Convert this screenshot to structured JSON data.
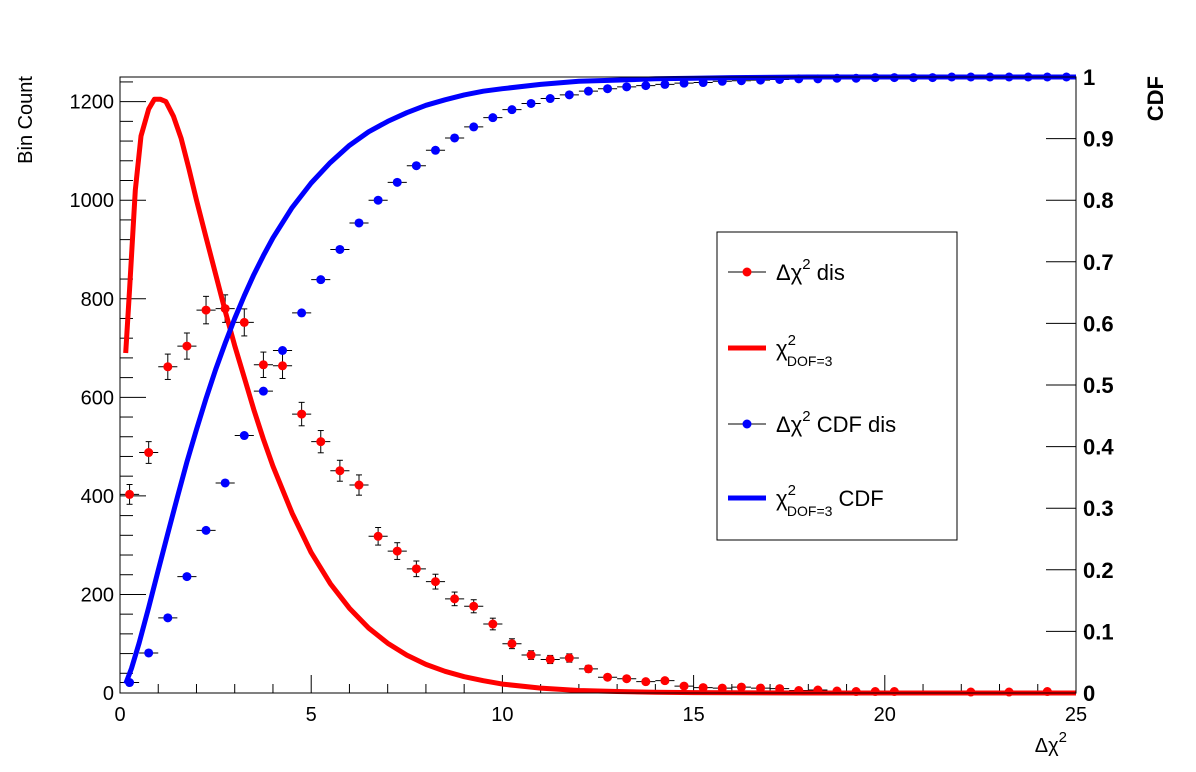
{
  "chart_data": {
    "type": "scatter",
    "xlabel": "Δχ",
    "xlabel_sup": "2",
    "ylabel": "Bin Count",
    "ylabel_right": "CDF",
    "xlim": [
      0,
      25
    ],
    "ylim": [
      0,
      1250
    ],
    "ylim_right": [
      0,
      1
    ],
    "x_ticks": [
      "0",
      "5",
      "10",
      "15",
      "20",
      "25"
    ],
    "y_ticks": [
      "0",
      "200",
      "400",
      "600",
      "800",
      "1000",
      "1200"
    ],
    "y_right_ticks": [
      "0",
      "0.1",
      "0.2",
      "0.3",
      "0.4",
      "0.5",
      "0.6",
      "0.7",
      "0.8",
      "0.9",
      "1"
    ],
    "grid": false,
    "legend_position": "right",
    "legend": [
      {
        "main": "Δχ",
        "sup": "2",
        "sub": "",
        "suffix": " dis",
        "style": "marker",
        "color": "#ff0000"
      },
      {
        "main": "χ",
        "sup": "2",
        "sub": "DOF=3",
        "suffix": "",
        "style": "line",
        "color": "#ff0000"
      },
      {
        "main": "Δχ",
        "sup": "2",
        "sub": "",
        "suffix": " CDF dis",
        "style": "marker",
        "color": "#0000ff"
      },
      {
        "main": "χ",
        "sup": "2",
        "sub": "DOF=3",
        "suffix": " CDF",
        "style": "line",
        "color": "#0000ff"
      }
    ],
    "bin_width": 0.5,
    "series": [
      {
        "name": "Δχ² dis",
        "kind": "points",
        "axis": "left",
        "color": "#ff0000",
        "x": [
          0.25,
          0.75,
          1.25,
          1.75,
          2.25,
          2.75,
          3.25,
          3.75,
          4.25,
          4.75,
          5.25,
          5.75,
          6.25,
          6.75,
          7.25,
          7.75,
          8.25,
          8.75,
          9.25,
          9.75,
          10.25,
          10.75,
          11.25,
          11.75,
          12.25,
          12.75,
          13.25,
          13.75,
          14.25,
          14.75,
          15.25,
          15.75,
          16.25,
          16.75,
          17.25,
          17.75,
          18.25,
          18.75,
          19.25,
          19.75,
          20.25,
          22.25,
          23.25,
          24.25
        ],
        "y": [
          403,
          488,
          662,
          704,
          777,
          780,
          752,
          666,
          664,
          566,
          510,
          451,
          422,
          318,
          288,
          252,
          226,
          191,
          176,
          140,
          100,
          77,
          68,
          71,
          49,
          32,
          29,
          23,
          25,
          14,
          11,
          10,
          12,
          10,
          9,
          5,
          6,
          4,
          3,
          3,
          3,
          2,
          2,
          3
        ]
      },
      {
        "name": "Δχ² CDF dis",
        "kind": "points",
        "axis": "right",
        "color": "#0000ff",
        "x": [
          0.25,
          0.75,
          1.25,
          1.75,
          2.25,
          2.75,
          3.25,
          3.75,
          4.25,
          4.75,
          5.25,
          5.75,
          6.25,
          6.75,
          7.25,
          7.75,
          8.25,
          8.75,
          9.25,
          9.75,
          10.25,
          10.75,
          11.25,
          11.75,
          12.25,
          12.75,
          13.25,
          13.75,
          14.25,
          14.75,
          15.25,
          15.75,
          16.25,
          16.75,
          17.25,
          17.75,
          18.25,
          18.75,
          19.25,
          19.75,
          20.25,
          20.75,
          21.25,
          21.75,
          22.25,
          22.75,
          23.25,
          23.75,
          24.25,
          24.75
        ],
        "y": [
          0.017,
          0.065,
          0.122,
          0.189,
          0.264,
          0.341,
          0.418,
          0.49,
          0.556,
          0.617,
          0.671,
          0.72,
          0.763,
          0.8,
          0.829,
          0.856,
          0.881,
          0.901,
          0.919,
          0.934,
          0.947,
          0.957,
          0.965,
          0.971,
          0.977,
          0.981,
          0.984,
          0.986,
          0.988,
          0.99,
          0.991,
          0.993,
          0.994,
          0.995,
          0.996,
          0.997,
          0.997,
          0.998,
          0.998,
          0.999,
          0.999,
          0.999,
          0.999,
          1.0,
          1.0,
          1.0,
          1.0,
          1.0,
          1.0,
          1.0
        ]
      },
      {
        "name": "χ²_DOF=3",
        "kind": "line",
        "axis": "left",
        "color": "#ff0000",
        "x": [
          0.15,
          0.25,
          0.4,
          0.55,
          0.75,
          0.9,
          1.05,
          1.2,
          1.4,
          1.6,
          1.8,
          2.0,
          2.25,
          2.5,
          2.75,
          3.0,
          3.25,
          3.5,
          3.75,
          4.0,
          4.5,
          5.0,
          5.5,
          6.0,
          6.5,
          7.0,
          7.5,
          8.0,
          8.5,
          9.0,
          9.5,
          10.0,
          11.0,
          12.0,
          13.0,
          14.0,
          15.0,
          16.0,
          18.0,
          20.0,
          22.0,
          25.0
        ],
        "y": [
          690,
          820,
          1020,
          1130,
          1185,
          1205,
          1205,
          1200,
          1170,
          1125,
          1065,
          1000,
          925,
          850,
          775,
          705,
          640,
          575,
          515,
          460,
          365,
          285,
          222,
          172,
          132,
          101,
          77,
          58,
          44,
          33,
          25,
          18,
          10,
          5,
          3,
          1.5,
          0.8,
          0.4,
          0.1,
          0,
          0,
          0
        ]
      },
      {
        "name": "χ²_DOF=3 CDF",
        "kind": "line",
        "axis": "right",
        "color": "#0000ff",
        "x": [
          0.15,
          0.3,
          0.5,
          0.75,
          1.0,
          1.25,
          1.5,
          1.75,
          2.0,
          2.25,
          2.5,
          2.75,
          3.0,
          3.25,
          3.5,
          3.75,
          4.0,
          4.5,
          5.0,
          5.5,
          6.0,
          6.5,
          7.0,
          7.5,
          8.0,
          8.5,
          9.0,
          9.5,
          10.0,
          11.0,
          12.0,
          13.0,
          14.0,
          15.0,
          16.0,
          18.0,
          20.0,
          25.0
        ],
        "y": [
          0.015,
          0.04,
          0.081,
          0.139,
          0.199,
          0.259,
          0.318,
          0.375,
          0.428,
          0.478,
          0.525,
          0.568,
          0.608,
          0.645,
          0.679,
          0.71,
          0.739,
          0.788,
          0.828,
          0.861,
          0.889,
          0.911,
          0.928,
          0.942,
          0.954,
          0.963,
          0.971,
          0.977,
          0.981,
          0.988,
          0.993,
          0.995,
          0.997,
          0.998,
          0.999,
          1.0,
          1.0,
          1.0
        ]
      }
    ]
  }
}
